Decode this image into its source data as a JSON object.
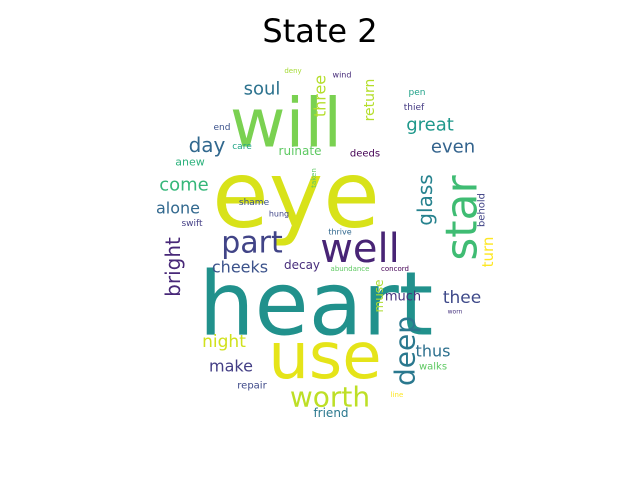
{
  "chart_data": {
    "type": "wordcloud",
    "title": "State 2",
    "mask": "circle",
    "colormap": "viridis",
    "words": [
      {
        "text": "heart",
        "weight": 1.0,
        "color": "#21918c"
      },
      {
        "text": "eye",
        "weight": 0.98,
        "color": "#d8e219"
      },
      {
        "text": "will",
        "weight": 0.72,
        "color": "#7ad151"
      },
      {
        "text": "use",
        "weight": 0.7,
        "color": "#e5e419"
      },
      {
        "text": "well",
        "weight": 0.38,
        "color": "#482475"
      },
      {
        "text": "star",
        "weight": 0.4,
        "color": "#3fbc73"
      },
      {
        "text": "part",
        "weight": 0.32,
        "color": "#414487"
      },
      {
        "text": "worth",
        "weight": 0.3,
        "color": "#bddf26"
      },
      {
        "text": "deep",
        "weight": 0.3,
        "color": "#2a788e"
      },
      {
        "text": "glass",
        "weight": 0.2,
        "color": "#26828e"
      },
      {
        "text": "soul",
        "weight": 0.18,
        "color": "#2c728e"
      },
      {
        "text": "three",
        "weight": 0.16,
        "color": "#b5de2b"
      },
      {
        "text": "return",
        "weight": 0.13,
        "color": "#b5de2b"
      },
      {
        "text": "great",
        "weight": 0.17,
        "color": "#1f988b"
      },
      {
        "text": "even",
        "weight": 0.17,
        "color": "#33638d"
      },
      {
        "text": "day",
        "weight": 0.18,
        "color": "#31688e"
      },
      {
        "text": "come",
        "weight": 0.17,
        "color": "#35b779"
      },
      {
        "text": "alone",
        "weight": 0.16,
        "color": "#31688e"
      },
      {
        "text": "bright",
        "weight": 0.2,
        "color": "#482878"
      },
      {
        "text": "cheeks",
        "weight": 0.15,
        "color": "#3b528b"
      },
      {
        "text": "turn",
        "weight": 0.15,
        "color": "#fde725"
      },
      {
        "text": "thee",
        "weight": 0.16,
        "color": "#3e4989"
      },
      {
        "text": "night",
        "weight": 0.15,
        "color": "#d0e11c"
      },
      {
        "text": "make",
        "weight": 0.14,
        "color": "#433e85"
      },
      {
        "text": "thus",
        "weight": 0.14,
        "color": "#2d708e"
      },
      {
        "text": "much",
        "weight": 0.12,
        "color": "#46337e"
      },
      {
        "text": "muse",
        "weight": 0.1,
        "color": "#addc30"
      },
      {
        "text": "decay",
        "weight": 0.11,
        "color": "#472d7b"
      },
      {
        "text": "ruinate",
        "weight": 0.1,
        "color": "#5ec962"
      },
      {
        "text": "anew",
        "weight": 0.1,
        "color": "#2db27d"
      },
      {
        "text": "deeds",
        "weight": 0.08,
        "color": "#440154"
      },
      {
        "text": "end",
        "weight": 0.08,
        "color": "#3b528b"
      },
      {
        "text": "care",
        "weight": 0.07,
        "color": "#20a486"
      },
      {
        "text": "thief",
        "weight": 0.07,
        "color": "#443a83"
      },
      {
        "text": "pen",
        "weight": 0.07,
        "color": "#1fa188"
      },
      {
        "text": "wind",
        "weight": 0.06,
        "color": "#472c7a"
      },
      {
        "text": "deny",
        "weight": 0.06,
        "color": "#a5db36"
      },
      {
        "text": "swift",
        "weight": 0.08,
        "color": "#433e85"
      },
      {
        "text": "shame",
        "weight": 0.07,
        "color": "#3b528b"
      },
      {
        "text": "hung",
        "weight": 0.06,
        "color": "#404688"
      },
      {
        "text": "taken",
        "weight": 0.06,
        "color": "#5ec962"
      },
      {
        "text": "behold",
        "weight": 0.08,
        "color": "#414487"
      },
      {
        "text": "thrive",
        "weight": 0.07,
        "color": "#31688e"
      },
      {
        "text": "abundance",
        "weight": 0.06,
        "color": "#5ec962"
      },
      {
        "text": "concord",
        "weight": 0.06,
        "color": "#440154"
      },
      {
        "text": "worn",
        "weight": 0.05,
        "color": "#46337e"
      },
      {
        "text": "repair",
        "weight": 0.08,
        "color": "#3e4989"
      },
      {
        "text": "walks",
        "weight": 0.08,
        "color": "#5ec962"
      },
      {
        "text": "line",
        "weight": 0.06,
        "color": "#fde725"
      },
      {
        "text": "friend",
        "weight": 0.1,
        "color": "#2a788e"
      }
    ]
  }
}
